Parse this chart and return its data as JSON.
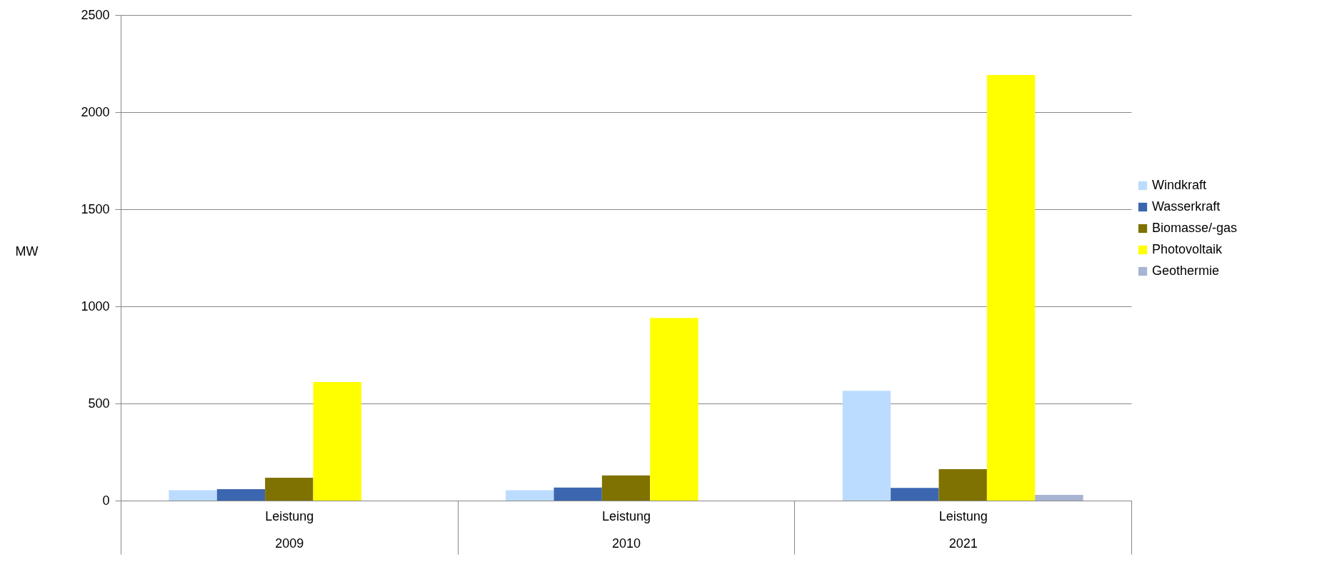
{
  "chart_data": {
    "type": "bar",
    "ylabel": "MW",
    "categories": [
      "Leistung\n2009",
      "Leistung\n2010",
      "Leistung\n2021"
    ],
    "series": [
      {
        "name": "Windkraft",
        "color": "#bbdcff",
        "values": [
          53,
          53,
          565
        ]
      },
      {
        "name": "Wasserkraft",
        "color": "#3c67b0",
        "values": [
          59,
          67,
          65
        ]
      },
      {
        "name": "Biomasse/-gas",
        "color": "#7f7200",
        "values": [
          118,
          130,
          162
        ]
      },
      {
        "name": "Photovoltaik",
        "color": "#ffff00",
        "values": [
          610,
          940,
          2191
        ]
      },
      {
        "name": "Geothermie",
        "color": "#a8b4d4",
        "values": [
          null,
          null,
          29
        ]
      }
    ],
    "ylim": [
      0,
      2500
    ],
    "yticks": [
      0,
      500,
      1000,
      1500,
      2000,
      2500
    ],
    "grid": "y",
    "legend": "right"
  }
}
